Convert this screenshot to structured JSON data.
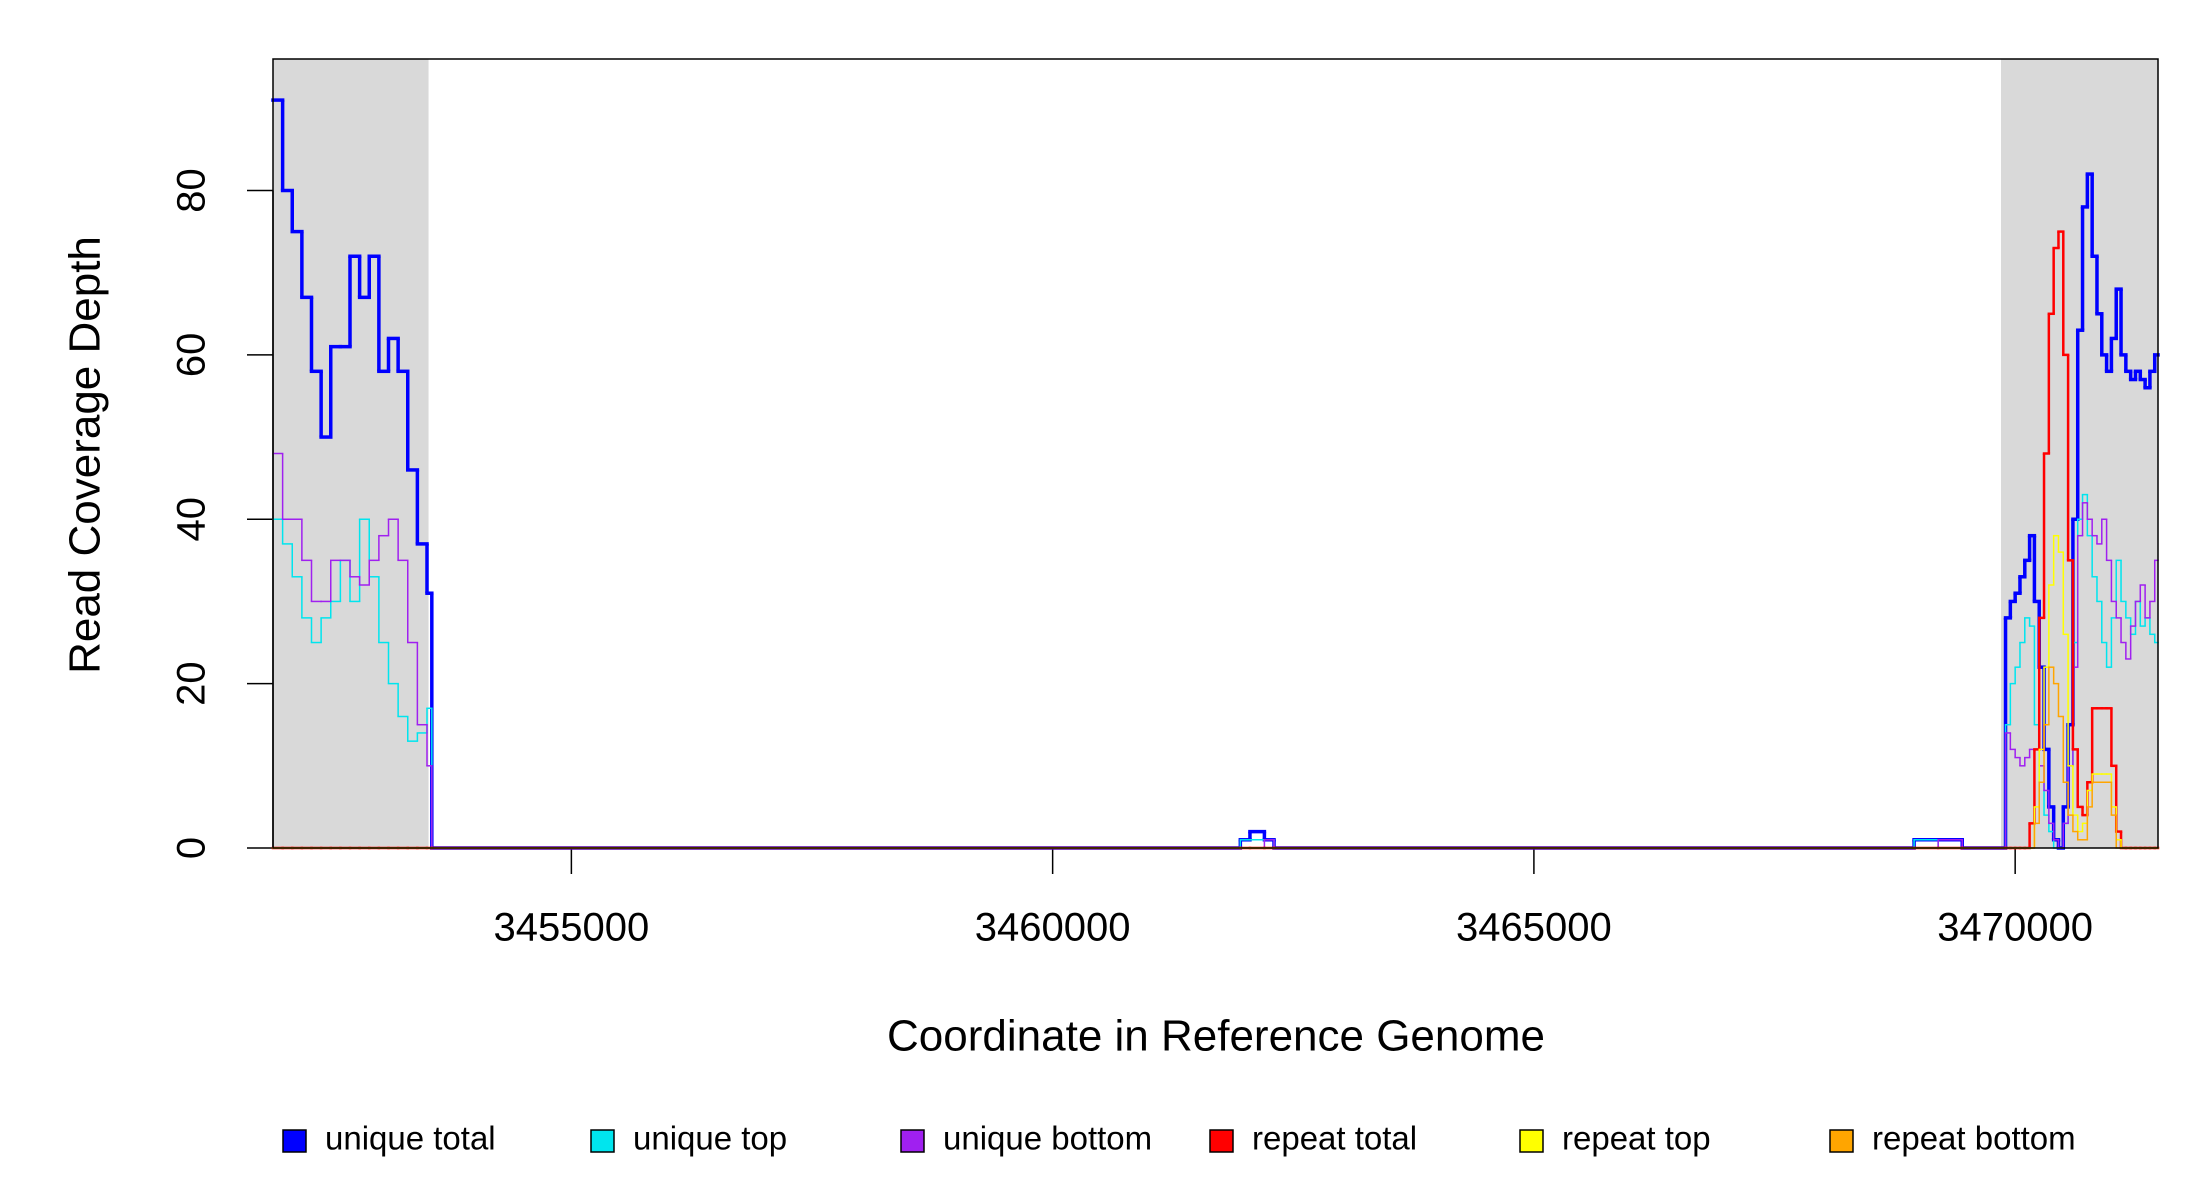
{
  "chart_data": {
    "type": "line",
    "step": true,
    "x_label": "Coordinate in Reference Genome",
    "y_label": "Read Coverage Depth",
    "xlim": [
      3451900,
      3471484
    ],
    "ylim": [
      0,
      96
    ],
    "xticks": [
      3455000,
      3460000,
      3465000,
      3470000
    ],
    "yticks": [
      0,
      20,
      40,
      60,
      80
    ],
    "shaded_regions": [
      [
        3451900,
        3453516
      ],
      [
        3469853,
        3471484
      ]
    ],
    "shade_color": "#d9d9d9",
    "legend_position": "bottom",
    "x": [
      3451900,
      3452000,
      3452100,
      3452200,
      3452300,
      3452400,
      3452500,
      3452600,
      3452700,
      3452800,
      3452900,
      3453000,
      3453100,
      3453200,
      3453300,
      3453400,
      3453500,
      3453550,
      3461950,
      3462050,
      3462200,
      3462300,
      3468950,
      3469200,
      3469450,
      3469900,
      3469950,
      3470000,
      3470050,
      3470100,
      3470150,
      3470200,
      3470250,
      3470300,
      3470350,
      3470400,
      3470450,
      3470500,
      3470550,
      3470600,
      3470650,
      3470700,
      3470750,
      3470800,
      3470850,
      3470900,
      3470950,
      3471000,
      3471050,
      3471100,
      3471150,
      3471200,
      3471250,
      3471300,
      3471350,
      3471400,
      3471450
    ],
    "series": [
      {
        "name": "unique total",
        "color": "#0000ff",
        "width": 3.5,
        "values": [
          91,
          80,
          75,
          67,
          58,
          50,
          61,
          61,
          72,
          67,
          72,
          58,
          62,
          58,
          46,
          37,
          31,
          0,
          1,
          2,
          1,
          0,
          1,
          1,
          0,
          28,
          30,
          31,
          33,
          35,
          38,
          30,
          22,
          12,
          5,
          1,
          0,
          5,
          15,
          40,
          63,
          78,
          82,
          72,
          65,
          60,
          58,
          62,
          68,
          60,
          58,
          57,
          58,
          57,
          56,
          58,
          60
        ]
      },
      {
        "name": "unique top",
        "color": "#00e5ee",
        "width": 1.5,
        "values": [
          40,
          37,
          33,
          28,
          25,
          28,
          30,
          35,
          30,
          40,
          33,
          25,
          20,
          16,
          13,
          14,
          17,
          0,
          1,
          1,
          1,
          0,
          1,
          0,
          0,
          15,
          20,
          22,
          25,
          28,
          27,
          15,
          8,
          4,
          2,
          0,
          0,
          3,
          10,
          25,
          40,
          43,
          38,
          33,
          30,
          25,
          22,
          28,
          35,
          30,
          28,
          26,
          30,
          27,
          28,
          26,
          25
        ]
      },
      {
        "name": "unique bottom",
        "color": "#a020f0",
        "width": 1.5,
        "values": [
          48,
          40,
          40,
          35,
          30,
          30,
          35,
          35,
          33,
          32,
          35,
          38,
          40,
          35,
          25,
          15,
          10,
          0,
          0,
          0,
          1,
          0,
          0,
          1,
          0,
          14,
          12,
          11,
          10,
          11,
          12,
          12,
          10,
          7,
          3,
          1,
          0,
          3,
          10,
          22,
          38,
          42,
          40,
          38,
          37,
          40,
          35,
          30,
          28,
          25,
          23,
          27,
          30,
          32,
          28,
          30,
          35
        ]
      },
      {
        "name": "repeat total",
        "color": "#ff0000",
        "width": 2.5,
        "values": [
          0,
          0,
          0,
          0,
          0,
          0,
          0,
          0,
          0,
          0,
          0,
          0,
          0,
          0,
          0,
          0,
          0,
          0,
          0,
          0,
          0,
          0,
          0,
          0,
          0,
          0,
          0,
          0,
          0,
          0,
          3,
          12,
          28,
          48,
          65,
          73,
          75,
          60,
          35,
          12,
          5,
          4,
          8,
          17,
          17,
          17,
          17,
          10,
          2,
          0,
          0,
          0,
          0,
          0,
          0,
          0,
          0
        ]
      },
      {
        "name": "repeat top",
        "color": "#ffff00",
        "width": 1.5,
        "values": [
          0,
          0,
          0,
          0,
          0,
          0,
          0,
          0,
          0,
          0,
          0,
          0,
          0,
          0,
          0,
          0,
          0,
          0,
          0,
          0,
          0,
          0,
          0,
          0,
          0,
          0,
          0,
          0,
          0,
          0,
          0,
          5,
          12,
          22,
          32,
          38,
          36,
          26,
          10,
          4,
          2,
          3,
          7,
          9,
          9,
          9,
          9,
          5,
          1,
          0,
          0,
          0,
          0,
          0,
          0,
          0,
          0
        ]
      },
      {
        "name": "repeat bottom",
        "color": "#ffa500",
        "width": 1.5,
        "values": [
          0,
          0,
          0,
          0,
          0,
          0,
          0,
          0,
          0,
          0,
          0,
          0,
          0,
          0,
          0,
          0,
          0,
          0,
          0,
          0,
          0,
          0,
          0,
          0,
          0,
          0,
          0,
          0,
          0,
          0,
          0,
          3,
          8,
          15,
          22,
          20,
          16,
          8,
          4,
          2,
          1,
          1,
          5,
          8,
          8,
          8,
          8,
          4,
          0,
          0,
          0,
          0,
          0,
          0,
          0,
          0,
          0
        ]
      }
    ]
  }
}
